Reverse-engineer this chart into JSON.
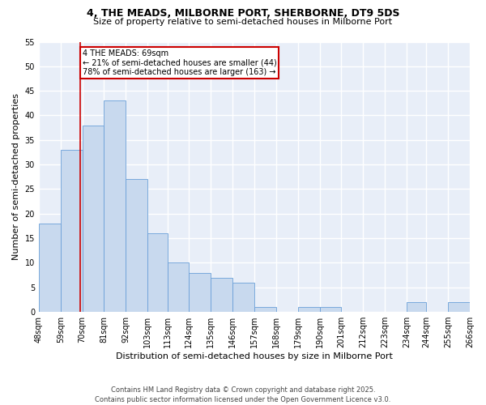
{
  "title1": "4, THE MEADS, MILBORNE PORT, SHERBORNE, DT9 5DS",
  "title2": "Size of property relative to semi-detached houses in Milborne Port",
  "xlabel": "Distribution of semi-detached houses by size in Milborne Port",
  "ylabel": "Number of semi-detached properties",
  "annotation_text": "4 THE MEADS: 69sqm\n← 21% of semi-detached houses are smaller (44)\n78% of semi-detached houses are larger (163) →",
  "bin_edges": [
    48,
    59,
    70,
    81,
    92,
    103,
    113,
    124,
    135,
    146,
    157,
    168,
    179,
    190,
    201,
    212,
    223,
    234,
    244,
    255,
    266
  ],
  "bin_labels": [
    "48sqm",
    "59sqm",
    "70sqm",
    "81sqm",
    "92sqm",
    "103sqm",
    "113sqm",
    "124sqm",
    "135sqm",
    "146sqm",
    "157sqm",
    "168sqm",
    "179sqm",
    "190sqm",
    "201sqm",
    "212sqm",
    "223sqm",
    "234sqm",
    "244sqm",
    "255sqm",
    "266sqm"
  ],
  "counts": [
    18,
    33,
    38,
    43,
    27,
    16,
    10,
    8,
    7,
    6,
    1,
    0,
    1,
    1,
    0,
    0,
    0,
    2,
    0,
    2
  ],
  "bar_color": "#c8d9ee",
  "bar_edge_color": "#6a9fd8",
  "vline_color": "#cc0000",
  "vline_x": 69,
  "ylim": [
    0,
    55
  ],
  "yticks": [
    0,
    5,
    10,
    15,
    20,
    25,
    30,
    35,
    40,
    45,
    50,
    55
  ],
  "fig_background": "#ffffff",
  "plot_background": "#e8eef8",
  "grid_color": "#ffffff",
  "footer": "Contains HM Land Registry data © Crown copyright and database right 2025.\nContains public sector information licensed under the Open Government Licence v3.0.",
  "box_facecolor": "#ffffff",
  "box_edgecolor": "#cc0000",
  "title1_fontsize": 9,
  "title2_fontsize": 8,
  "ylabel_fontsize": 8,
  "xlabel_fontsize": 8,
  "tick_fontsize": 7,
  "annot_fontsize": 7,
  "footer_fontsize": 6
}
